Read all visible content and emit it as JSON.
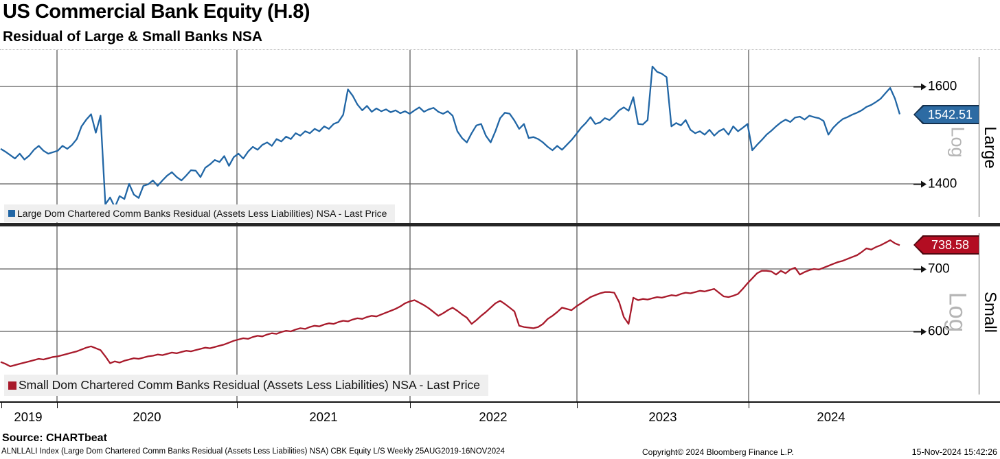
{
  "header": {
    "title": "US Commercial Bank Equity (H.8)",
    "subtitle": "Residual of Large & Small Banks NSA"
  },
  "x_axis": {
    "labels": [
      "2019",
      "2020",
      "2021",
      "2022",
      "2023",
      "2024"
    ]
  },
  "panels": [
    {
      "side_label": "Large",
      "scale_label": "Log",
      "last_price": "1542.51",
      "tick_labels": [
        "1600",
        "1400"
      ],
      "legend": "Large Dom Chartered Comm Banks Residual (Assets Less Liabilities) NSA - Last Price",
      "line_color": "#2166a5"
    },
    {
      "side_label": "Small",
      "scale_label": "Log",
      "last_price": "738.58",
      "tick_labels": [
        "700",
        "600"
      ],
      "legend": "Small Dom Chartered Comm Banks Residual (Assets Less Liabilities) NSA - Last Price",
      "line_color": "#a81a2b"
    }
  ],
  "footer": {
    "source": "Source: CHARTbeat",
    "description": "ALNLLALI Index (Large Dom Chartered Comm Banks Residual (Assets Less Liabilities) NSA) CBK Equity L/S  Weekly 25AUG2019-16NOV2024",
    "copyright": "Copyright© 2024 Bloomberg Finance L.P.",
    "datetime": "15-Nov-2024 15:42:26"
  },
  "chart_data": [
    {
      "type": "line",
      "title": "Large Dom Chartered Comm Banks Residual (Assets Less Liabilities) NSA - Last Price",
      "frequency": "Weekly",
      "x_unit": "decimal_year",
      "x_range": [
        2019.654,
        2024.874
      ],
      "x_tick_labels": [
        "2019",
        "2020",
        "2021",
        "2022",
        "2023",
        "2024"
      ],
      "y_scale": "log",
      "y_ticks": [
        1600,
        1400
      ],
      "last_price": 1542.51,
      "color": "#2166a5",
      "values": [
        1472,
        1466,
        1459,
        1452,
        1462,
        1450,
        1458,
        1470,
        1478,
        1468,
        1462,
        1465,
        1468,
        1478,
        1472,
        1480,
        1492,
        1518,
        1532,
        1543,
        1505,
        1540,
        1358,
        1372,
        1352,
        1375,
        1369,
        1400,
        1378,
        1371,
        1396,
        1399,
        1407,
        1396,
        1407,
        1417,
        1424,
        1414,
        1407,
        1417,
        1428,
        1427,
        1414,
        1433,
        1440,
        1449,
        1445,
        1457,
        1437,
        1455,
        1462,
        1452,
        1466,
        1476,
        1470,
        1480,
        1485,
        1478,
        1492,
        1487,
        1497,
        1492,
        1504,
        1499,
        1508,
        1504,
        1513,
        1508,
        1518,
        1513,
        1523,
        1527,
        1542,
        1594,
        1581,
        1563,
        1551,
        1560,
        1548,
        1555,
        1549,
        1553,
        1547,
        1551,
        1545,
        1549,
        1544,
        1551,
        1557,
        1548,
        1553,
        1556,
        1548,
        1544,
        1549,
        1540,
        1508,
        1494,
        1485,
        1504,
        1520,
        1523,
        1499,
        1485,
        1508,
        1535,
        1546,
        1544,
        1530,
        1513,
        1523,
        1494,
        1496,
        1492,
        1485,
        1476,
        1469,
        1478,
        1470,
        1480,
        1490,
        1502,
        1515,
        1525,
        1537,
        1523,
        1526,
        1535,
        1531,
        1540,
        1551,
        1557,
        1550,
        1578,
        1523,
        1522,
        1531,
        1641,
        1630,
        1626,
        1619,
        1518,
        1525,
        1520,
        1531,
        1511,
        1504,
        1508,
        1501,
        1511,
        1499,
        1508,
        1513,
        1501,
        1518,
        1508,
        1515,
        1523,
        1469,
        1480,
        1490,
        1501,
        1509,
        1518,
        1526,
        1532,
        1527,
        1536,
        1538,
        1532,
        1540,
        1537,
        1535,
        1529,
        1501,
        1515,
        1525,
        1533,
        1537,
        1542,
        1546,
        1551,
        1558,
        1562,
        1568,
        1575,
        1586,
        1597,
        1575,
        1543
      ]
    },
    {
      "type": "line",
      "title": "Small Dom Chartered Comm Banks Residual (Assets Less Liabilities) NSA - Last Price",
      "frequency": "Weekly",
      "x_unit": "decimal_year",
      "x_range": [
        2019.654,
        2024.874
      ],
      "x_tick_labels": [
        "2019",
        "2020",
        "2021",
        "2022",
        "2023",
        "2024"
      ],
      "y_scale": "log",
      "y_ticks": [
        700,
        600
      ],
      "last_price": 738.58,
      "color": "#a81a2b",
      "values": [
        551,
        548,
        544,
        546,
        548,
        550,
        552,
        554,
        556,
        555,
        557,
        559,
        560,
        562,
        564,
        566,
        568,
        571,
        574,
        576,
        573,
        570,
        560,
        549,
        552,
        550,
        553,
        555,
        557,
        556,
        558,
        560,
        561,
        563,
        562,
        564,
        566,
        565,
        567,
        569,
        568,
        570,
        572,
        574,
        573,
        575,
        577,
        579,
        582,
        585,
        587,
        589,
        588,
        591,
        593,
        592,
        595,
        597,
        596,
        599,
        601,
        600,
        603,
        605,
        604,
        607,
        609,
        608,
        611,
        613,
        612,
        615,
        617,
        616,
        619,
        621,
        620,
        623,
        625,
        624,
        627,
        630,
        633,
        636,
        640,
        645,
        648,
        650,
        646,
        642,
        637,
        631,
        625,
        629,
        634,
        638,
        633,
        627,
        622,
        612,
        618,
        625,
        631,
        638,
        645,
        649,
        644,
        638,
        632,
        609,
        607,
        606,
        605,
        607,
        612,
        620,
        625,
        631,
        638,
        636,
        634,
        640,
        645,
        650,
        655,
        658,
        661,
        663,
        663,
        662,
        647,
        623,
        612,
        654,
        650,
        652,
        651,
        653,
        655,
        654,
        656,
        658,
        657,
        660,
        662,
        661,
        663,
        665,
        664,
        666,
        668,
        662,
        656,
        655,
        657,
        660,
        668,
        677,
        685,
        693,
        697,
        697,
        696,
        691,
        697,
        693,
        699,
        702,
        691,
        695,
        698,
        700,
        699,
        702,
        705,
        708,
        711,
        713,
        716,
        719,
        722,
        727,
        733,
        731,
        735,
        738,
        742,
        746,
        741,
        738
      ]
    }
  ]
}
